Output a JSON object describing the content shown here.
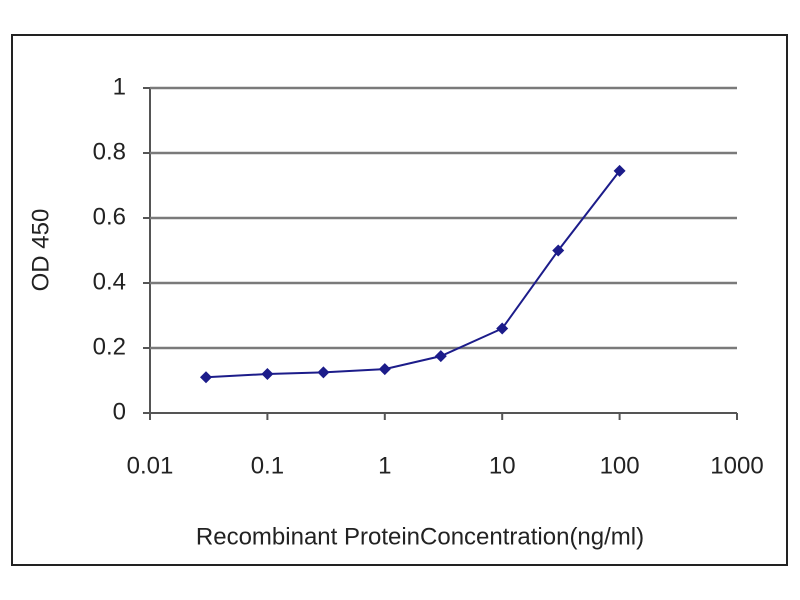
{
  "chart_data": {
    "type": "line",
    "x_label": "Recombinant ProteinConcentration(ng/ml)",
    "y_label": "OD 450",
    "x": [
      0.03,
      0.1,
      0.3,
      1,
      3,
      10,
      30,
      100
    ],
    "values": [
      0.11,
      0.12,
      0.125,
      0.135,
      0.175,
      0.26,
      0.5,
      0.745
    ],
    "color": "#1c1c8a",
    "xscale": "log",
    "xlim": [
      0.01,
      1000
    ],
    "xticks": [
      0.01,
      0.1,
      1,
      10,
      100,
      1000
    ],
    "ylim": [
      0,
      1
    ],
    "yticks": [
      0,
      0.2,
      0.4,
      0.6,
      0.8,
      1
    ],
    "grid": true
  }
}
